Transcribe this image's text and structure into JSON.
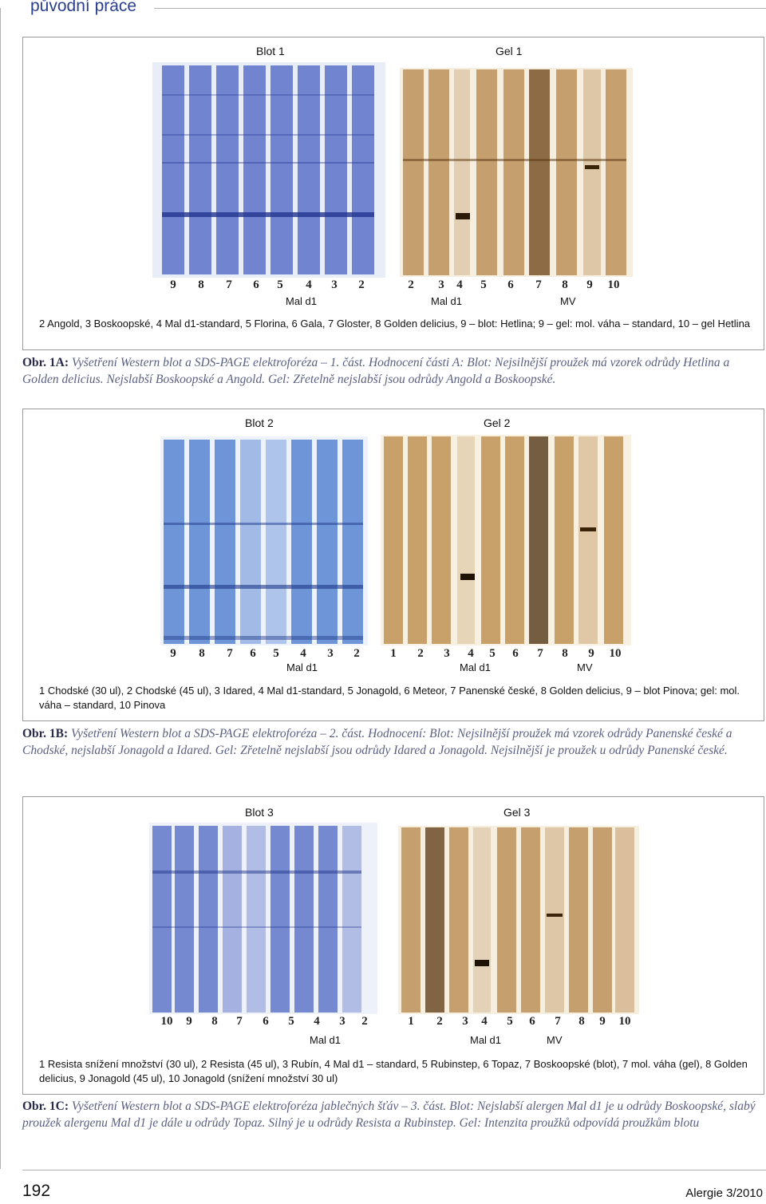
{
  "header": {
    "section": "původní práce"
  },
  "figures": [
    {
      "blot_title": "Blot 1",
      "gel_title": "Gel 1",
      "blot_lanes": [
        "9",
        "8",
        "7",
        "6",
        "5",
        "4",
        "3",
        "2"
      ],
      "gel_lanes": [
        "2",
        "3",
        "4",
        "5",
        "6",
        "7",
        "8",
        "9",
        "10"
      ],
      "blot_sub": [
        "Mal d1"
      ],
      "gel_sub": [
        "Mal d1",
        "MV"
      ],
      "legend": "2 Angold, 3 Boskoopské, 4 Mal d1-standard, 5 Florina, 6 Gala, 7 Gloster, 8 Golden delicius, 9 – blot: Hetlina; 9 – gel: mol. váha – standard, 10 – gel Hetlina",
      "caption_prefix": "Obr. 1A:",
      "caption": "Vyšetření Western blot a SDS-PAGE elektroforéza – 1. část. Hodnocení části A: Blot: Nejsilnější proužek má vzorek odrůdy Hetlina a Golden delicius. Nejslabší Boskoopské a Angold. Gel: Zřetelně nejslabší jsou odrůdy Angold a Boskoopské."
    },
    {
      "blot_title": "Blot 2",
      "gel_title": "Gel 2",
      "blot_lanes": [
        "9",
        "8",
        "7",
        "6",
        "5",
        "4",
        "3",
        "2"
      ],
      "gel_lanes": [
        "1",
        "2",
        "3",
        "4",
        "5",
        "6",
        "7",
        "8",
        "9",
        "10"
      ],
      "blot_sub": [
        "Mal d1"
      ],
      "gel_sub": [
        "Mal d1",
        "MV"
      ],
      "legend": "1 Chodské (30 ul), 2 Chodské (45 ul), 3 Idared, 4 Mal d1-standard, 5 Jonagold, 6 Meteor, 7 Panenské české, 8 Golden delicius, 9 – blot Pinova; gel: mol. váha – standard, 10 Pinova",
      "caption_prefix": "Obr. 1B:",
      "caption": "Vyšetření Western blot a SDS-PAGE elektroforéza – 2. část. Hodnocení: Blot: Nejsilnější proužek má vzorek odrůdy Panenské české a Chodské, nejslabší Jonagold a Idared. Gel: Zřetelně nejslabší jsou odrůdy Idared a Jonagold. Nejsilnější je proužek u odrůdy Panenské české."
    },
    {
      "blot_title": "Blot 3",
      "gel_title": "Gel 3",
      "blot_lanes": [
        "10",
        "9",
        "8",
        "7",
        "6",
        "5",
        "4",
        "3",
        "2"
      ],
      "gel_lanes": [
        "1",
        "2",
        "3",
        "4",
        "5",
        "6",
        "7",
        "8",
        "9",
        "10"
      ],
      "blot_sub": [
        "Mal d1"
      ],
      "gel_sub": [
        "Mal d1",
        "MV"
      ],
      "legend": "1 Resista snížení množství (30 ul), 2 Resista (45 ul), 3 Rubín, 4 Mal d1 – standard, 5 Rubinstep, 6 Topaz, 7 Boskoopské (blot), 7 mol. váha (gel), 8 Golden delicius, 9 Jonagold (45 ul), 10 Jonagold (snížení množství 30 ul)",
      "caption_prefix": "Obr. 1C:",
      "caption": "Vyšetření Western blot a SDS-PAGE elektroforéza jablečných šťáv – 3. část. Blot: Nejslabší alergen Mal d1 je u odrůdy Boskoopské, slabý proužek alergenu Mal d1 je dále u odrůdy Topaz. Silný je u odrůdy Resista a Rubinstep. Gel: Intenzita proužků odpovídá proužkům blotu"
    }
  ],
  "footer": {
    "page_number": "192",
    "journal": "Alergie 3/2010"
  },
  "colors": {
    "blot_blue": "#3b56b8",
    "gel_brown": "#7a4a18",
    "header_blue": "#2a3f8f"
  }
}
